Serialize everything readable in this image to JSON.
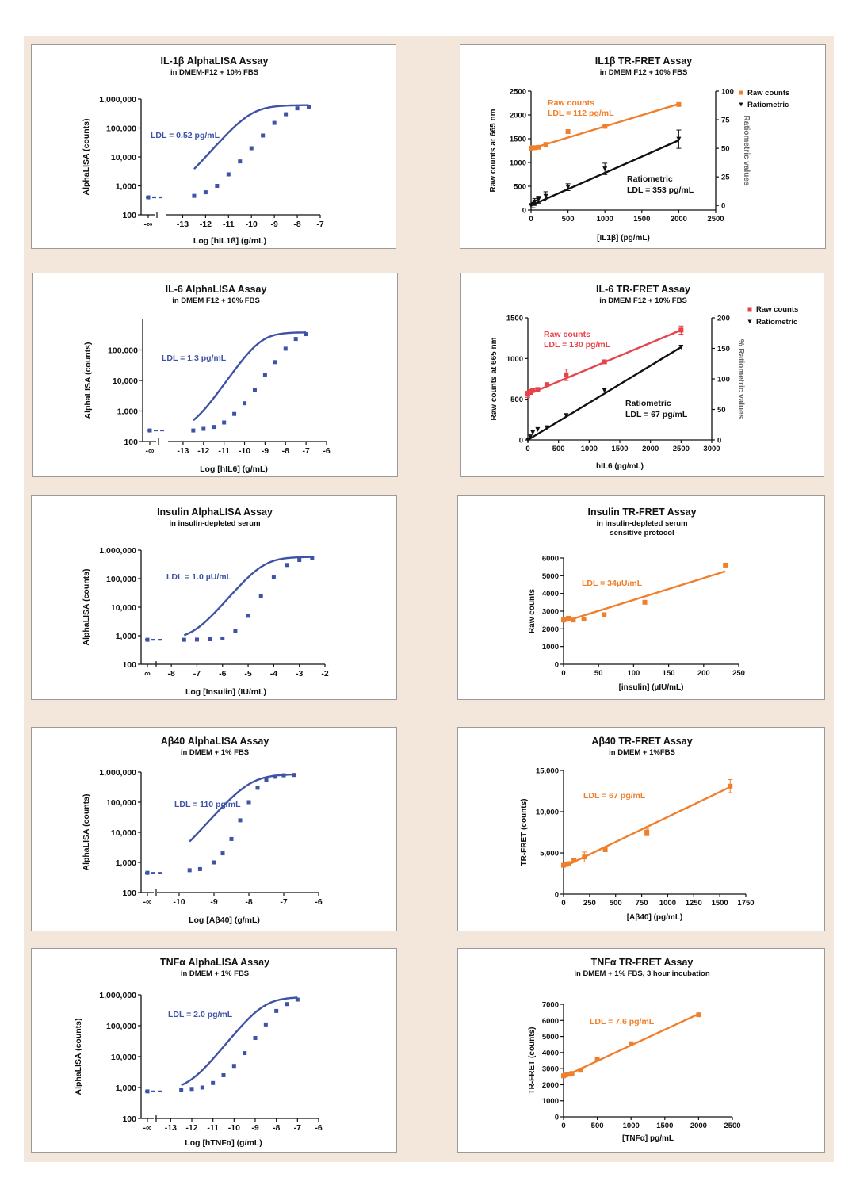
{
  "colors": {
    "alpha": "#3e53a6",
    "orange": "#f07f2c",
    "red": "#e8434b",
    "black": "#111111",
    "grey": "#666666",
    "bg": "#f3e6da"
  },
  "chart_data": [
    {
      "id": "c1",
      "type": "line",
      "kind": "sigmoid",
      "title": "IL-1β AlphaLISA Assay",
      "subtitle": "in DMEM-F12 + 10% FBS",
      "xlabel": "Log [hIL1ß] (g/mL)",
      "ylabel": "AlphaLISA (counts)",
      "ylog": true,
      "ylim": [
        100,
        1000000
      ],
      "yticks": [
        100,
        1000,
        10000,
        100000,
        1000000
      ],
      "yticklabels": [
        "100",
        "1,000",
        "10,000",
        "100,000",
        "1,000,000"
      ],
      "xlim": [
        -13.5,
        -7
      ],
      "xticks": [
        -13,
        -12,
        -11,
        -10,
        -9,
        -8,
        -7
      ],
      "xticklabels": [
        "-13",
        "-12",
        "-11",
        "-10",
        "-9",
        "-8",
        "-7"
      ],
      "zero_label": "-∞",
      "annotations": [
        {
          "text": "LDL = 0.52 pg/mL",
          "color": "alpha"
        }
      ],
      "points_x": [
        -12.5,
        -12,
        -11.5,
        -11,
        -10.5,
        -10,
        -9.5,
        -9,
        -8.5,
        -8,
        -7.5
      ],
      "points_y": [
        450,
        600,
        1000,
        2500,
        7000,
        20000,
        55000,
        150000,
        300000,
        480000,
        550000
      ],
      "baseline_y": 400,
      "fit": {
        "bottom": 380,
        "top": 620000,
        "logec50": -10,
        "hill": 0.9
      }
    },
    {
      "id": "c2",
      "type": "line",
      "kind": "linear2",
      "title": "IL1β TR-FRET Assay",
      "subtitle": "in DMEM F12 + 10% FBS",
      "xlabel": "[IL1β] (pg/mL)",
      "ylabel": "Raw counts at 665 nm",
      "y2label": "Ratiometric  values",
      "xlim": [
        0,
        2500
      ],
      "xticks": [
        0,
        500,
        1000,
        1500,
        2000,
        2500
      ],
      "xticklabels": [
        "0",
        "500",
        "1000",
        "1500",
        "2000",
        "2500"
      ],
      "ylim": [
        0,
        2500
      ],
      "yticks": [
        0,
        500,
        1000,
        1500,
        2000,
        2500
      ],
      "yticklabels": [
        "0",
        "500",
        "1000",
        "1500",
        "2000",
        "2500"
      ],
      "y2lim": [
        -4,
        100
      ],
      "y2ticks": [
        0,
        25,
        50,
        75,
        100
      ],
      "y2ticklabels": [
        "0",
        "25",
        "50",
        "75",
        "100"
      ],
      "series": [
        {
          "name": "Raw counts",
          "color": "orange",
          "marker": "square",
          "axis": "y",
          "x": [
            0,
            25,
            50,
            100,
            200,
            500,
            1000,
            2000
          ],
          "y": [
            1300,
            1310,
            1310,
            1320,
            1380,
            1650,
            1760,
            2220
          ],
          "fit": [
            [
              0,
              1290
            ],
            [
              2000,
              2230
            ]
          ]
        },
        {
          "name": "Ratiometric",
          "color": "black",
          "marker": "triangle",
          "axis": "y2",
          "x": [
            0,
            25,
            50,
            100,
            200,
            500,
            1000,
            2000
          ],
          "y": [
            0,
            1,
            3,
            5,
            8,
            16,
            32,
            58
          ],
          "err": [
            4,
            3,
            3,
            3,
            4,
            3,
            5,
            8
          ],
          "fit": [
            [
              0,
              0
            ],
            [
              2000,
              57
            ]
          ]
        }
      ],
      "annotations": [
        {
          "text": "Raw counts",
          "color": "orange"
        },
        {
          "text": "LDL = 112 pg/mL",
          "color": "orange"
        },
        {
          "text": "Ratiometric",
          "color": "black"
        },
        {
          "text": "LDL = 353 pg/mL",
          "color": "black"
        }
      ],
      "legend": "top-right"
    },
    {
      "id": "c3",
      "type": "line",
      "kind": "sigmoid",
      "title": "IL-6 AlphaLISA Assay",
      "subtitle": "in DMEM F12 + 10% FBS",
      "xlabel": "Log [hIL6] (g/mL)",
      "ylabel": "AlphaLISA (counts)",
      "ylog": true,
      "ylim": [
        100,
        1000000
      ],
      "yticks": [
        100,
        1000,
        10000,
        100000
      ],
      "yticklabels": [
        "100",
        "1,000",
        "10,000",
        "100,000"
      ],
      "xlim": [
        -13.5,
        -6
      ],
      "xticks": [
        -13,
        -12,
        -11,
        -10,
        -9,
        -8,
        -7,
        -6
      ],
      "xticklabels": [
        "-13",
        "-12",
        "-11",
        "-10",
        "-9",
        "-8",
        "-7",
        "-6"
      ],
      "zero_label": "-∞",
      "annotations": [
        {
          "text": "LDL = 1.3 pg/mL",
          "color": "alpha"
        }
      ],
      "points_x": [
        -12.5,
        -12,
        -11.5,
        -11,
        -10.5,
        -10,
        -9.5,
        -9,
        -8.5,
        -8,
        -7.5,
        -7
      ],
      "points_y": [
        230,
        260,
        300,
        420,
        800,
        1800,
        5000,
        15000,
        40000,
        110000,
        230000,
        330000
      ],
      "baseline_y": 230,
      "fit": {
        "bottom": 220,
        "top": 380000,
        "logec50": -9.2,
        "hill": 0.95
      }
    },
    {
      "id": "c4",
      "type": "line",
      "kind": "linear2",
      "title": "IL-6 TR-FRET Assay",
      "subtitle": "in DMEM F12 + 10% FBS",
      "xlabel": "hIL6 (pg/mL)",
      "ylabel": "Raw counts at 665 nm",
      "y2label": "% Ratiometric  values",
      "xlim": [
        0,
        3000
      ],
      "xticks": [
        0,
        500,
        1000,
        1500,
        2000,
        2500,
        3000
      ],
      "xticklabels": [
        "0",
        "500",
        "1000",
        "1500",
        "2000",
        "2500",
        "3000"
      ],
      "ylim": [
        0,
        1500
      ],
      "yticks": [
        0,
        500,
        1000,
        1500
      ],
      "yticklabels": [
        "0",
        "500",
        "1000",
        "1500"
      ],
      "y2lim": [
        0,
        200
      ],
      "y2ticks": [
        0,
        50,
        100,
        150,
        200
      ],
      "y2ticklabels": [
        "0",
        "50",
        "100",
        "150",
        "200"
      ],
      "series": [
        {
          "name": "Raw counts",
          "color": "red",
          "marker": "square",
          "axis": "y",
          "x": [
            0,
            40,
            80,
            160,
            310,
            625,
            1250,
            2500
          ],
          "y": [
            560,
            590,
            610,
            620,
            680,
            800,
            960,
            1350
          ],
          "err": [
            40,
            30,
            20,
            20,
            20,
            70,
            15,
            50
          ],
          "fit": [
            [
              0,
              560
            ],
            [
              2500,
              1350
            ]
          ]
        },
        {
          "name": "Ratiometric",
          "color": "black",
          "marker": "triangle",
          "axis": "y2",
          "x": [
            0,
            40,
            80,
            160,
            310,
            625,
            1250,
            2500
          ],
          "y": [
            0,
            5,
            12,
            17,
            20,
            40,
            81,
            152
          ],
          "fit": [
            [
              0,
              0
            ],
            [
              2500,
              152
            ]
          ]
        }
      ],
      "annotations": [
        {
          "text": "Raw counts",
          "color": "red"
        },
        {
          "text": "LDL = 130 pg/mL",
          "color": "red"
        },
        {
          "text": "Ratiometric",
          "color": "black"
        },
        {
          "text": "LDL = 67 pg/mL",
          "color": "black"
        }
      ],
      "legend": "top-right",
      "legend_labels": [
        "Raw counts",
        "Ratiometric"
      ]
    },
    {
      "id": "c5",
      "type": "line",
      "kind": "sigmoid",
      "title": "Insulin AlphaLISA Assay",
      "subtitle": "in insulin-depleted serum",
      "xlabel": "Log [Insulin] (IU/mL)",
      "ylabel": "AlphaLISA  (counts)",
      "ylog": true,
      "ylim": [
        100,
        1000000
      ],
      "yticks": [
        100,
        1000,
        10000,
        100000,
        1000000
      ],
      "yticklabels": [
        "100",
        "1,000",
        "10,000",
        "100,000",
        "1,000,000"
      ],
      "xlim": [
        -8.5,
        -2
      ],
      "xticks": [
        -8,
        -7,
        -6,
        -5,
        -4,
        -3,
        -2
      ],
      "xticklabels": [
        "-8",
        "-7",
        "-6",
        "-5",
        "-4",
        "-3",
        "-2"
      ],
      "zero_label": "∞",
      "annotations": [
        {
          "text": "LDL = 1.0 µU/mL",
          "color": "alpha"
        }
      ],
      "points_x": [
        -7.5,
        -7,
        -6.5,
        -6,
        -5.5,
        -5,
        -4.5,
        -4,
        -3.5,
        -3,
        -2.5
      ],
      "points_y": [
        720,
        730,
        750,
        800,
        1500,
        5000,
        25000,
        110000,
        300000,
        450000,
        520000
      ],
      "baseline_y": 720,
      "fit": {
        "bottom": 720,
        "top": 580000,
        "logec50": -4.4,
        "hill": 1.05
      }
    },
    {
      "id": "c6",
      "type": "scatter",
      "kind": "linear",
      "title": "Insulin TR-FRET Assay",
      "subtitle": "in insulin-depleted serum",
      "subtitle2": "sensitive protocol",
      "xlabel": "[insulin] (µIU/mL)",
      "ylabel": "Raw  counts",
      "xlim": [
        0,
        250
      ],
      "xticks": [
        0,
        50,
        100,
        150,
        200,
        250
      ],
      "xticklabels": [
        "0",
        "50",
        "100",
        "150",
        "200",
        "250"
      ],
      "ylim": [
        0,
        6000
      ],
      "yticks": [
        0,
        1000,
        2000,
        3000,
        4000,
        5000,
        6000
      ],
      "yticklabels": [
        "0",
        "1000",
        "2000",
        "3000",
        "4000",
        "5000",
        "6000"
      ],
      "series": [
        {
          "name": "",
          "color": "orange",
          "marker": "square",
          "x": [
            0,
            3.5,
            7,
            14,
            29,
            58,
            116,
            231
          ],
          "y": [
            2500,
            2550,
            2600,
            2500,
            2550,
            2800,
            3500,
            5600
          ],
          "fit": [
            [
              0,
              2400
            ],
            [
              231,
              5250
            ]
          ]
        }
      ],
      "annotations": [
        {
          "text": "LDL = 34µU/mL",
          "color": "orange"
        }
      ]
    },
    {
      "id": "c7",
      "type": "line",
      "kind": "sigmoid",
      "title": "Aβ40 AlphaLISA Assay",
      "subtitle": "in DMEM + 1% FBS",
      "xlabel": "Log [Aβ40] (g/mL)",
      "ylabel": "AlphaLISA (counts)",
      "ylog": true,
      "ylim": [
        100,
        1000000
      ],
      "yticks": [
        100,
        1000,
        10000,
        100000,
        1000000
      ],
      "yticklabels": [
        "100",
        "1,000",
        "10,000",
        "100,000",
        "1,000,000"
      ],
      "xlim": [
        -10.5,
        -6
      ],
      "xticks": [
        -10,
        -9,
        -8,
        -7,
        -6
      ],
      "xticklabels": [
        "-10",
        "-9",
        "-8",
        "-7",
        "-6"
      ],
      "zero_label": "-∞",
      "annotations": [
        {
          "text": "LDL = 110 pg/mL",
          "color": "alpha"
        }
      ],
      "points_x": [
        -9.7,
        -9.4,
        -9,
        -8.75,
        -8.5,
        -8.25,
        -8,
        -7.75,
        -7.5,
        -7.25,
        -7,
        -6.7
      ],
      "points_y": [
        550,
        600,
        1000,
        2000,
        6000,
        25000,
        100000,
        300000,
        550000,
        700000,
        780000,
        800000
      ],
      "baseline_y": 450,
      "fit": {
        "bottom": 450,
        "top": 850000,
        "logec50": -7.95,
        "hill": 1.3
      }
    },
    {
      "id": "c8",
      "type": "scatter",
      "kind": "linear",
      "title": "Aβ40 TR-FRET Assay",
      "subtitle": "in DMEM + 1%FBS",
      "xlabel": "[Aβ40] (pg/mL)",
      "ylabel": "TR-FRET (counts)",
      "xlim": [
        0,
        1750
      ],
      "xticks": [
        0,
        250,
        500,
        750,
        1000,
        1250,
        1500,
        1750
      ],
      "xticklabels": [
        "0",
        "250",
        "500",
        "750",
        "1000",
        "1250",
        "1500",
        "1750"
      ],
      "ylim": [
        0,
        15000
      ],
      "yticks": [
        0,
        5000,
        10000,
        15000
      ],
      "yticklabels": [
        "0",
        "5,000",
        "10,000",
        "15,000"
      ],
      "series": [
        {
          "name": "",
          "color": "orange",
          "marker": "square",
          "x": [
            0,
            25,
            50,
            100,
            200,
            400,
            800,
            1600
          ],
          "y": [
            3500,
            3600,
            3700,
            4100,
            4500,
            5400,
            7500,
            13100
          ],
          "err": [
            200,
            150,
            150,
            200,
            600,
            250,
            400,
            800
          ],
          "fit": [
            [
              0,
              3300
            ],
            [
              1600,
              13000
            ]
          ]
        }
      ],
      "annotations": [
        {
          "text": "LDL = 67 pg/mL",
          "color": "orange"
        }
      ]
    },
    {
      "id": "c9",
      "type": "line",
      "kind": "sigmoid",
      "title": "TNFα AlphaLISA Assay",
      "subtitle": "in DMEM + 1% FBS",
      "xlabel": "Log [hTNFα] (g/mL)",
      "ylabel": "AlphaLISA (counts)",
      "ylog": true,
      "ylim": [
        100,
        1000000
      ],
      "yticks": [
        100,
        1000,
        10000,
        100000,
        1000000
      ],
      "yticklabels": [
        "100",
        "1,000",
        "10,000",
        "100,000",
        "1,000,000"
      ],
      "xlim": [
        -13.5,
        -6
      ],
      "xticks": [
        -13,
        -12,
        -11,
        -10,
        -9,
        -8,
        -7,
        -6
      ],
      "xticklabels": [
        "-13",
        "-12",
        "-11",
        "-10",
        "-9",
        "-8",
        "-7",
        "-6"
      ],
      "zero_label": "-∞",
      "annotations": [
        {
          "text": "LDL = 2.0 pg/mL",
          "color": "alpha"
        }
      ],
      "points_x": [
        -12.5,
        -12,
        -11.5,
        -11,
        -10.5,
        -10,
        -9.5,
        -9,
        -8.5,
        -8,
        -7.5,
        -7
      ],
      "points_y": [
        850,
        900,
        1000,
        1400,
        2500,
        5000,
        13000,
        40000,
        110000,
        300000,
        500000,
        700000
      ],
      "baseline_y": 750,
      "fit": {
        "bottom": 780,
        "top": 850000,
        "logec50": -8.6,
        "hill": 0.85
      }
    },
    {
      "id": "c10",
      "type": "scatter",
      "kind": "linear",
      "title": "TNFα TR-FRET Assay",
      "subtitle": "in DMEM + 1% FBS, 3 hour incubation",
      "xlabel": "[TNFα] pg/mL",
      "ylabel": "TR-FRET  (counts)",
      "xlim": [
        0,
        2500
      ],
      "xticks": [
        0,
        500,
        1000,
        1500,
        2000,
        2500
      ],
      "xticklabels": [
        "0",
        "500",
        "1000",
        "1500",
        "2000",
        "2500"
      ],
      "ylim": [
        0,
        7000
      ],
      "yticks": [
        0,
        1000,
        2000,
        3000,
        4000,
        5000,
        6000,
        7000
      ],
      "yticklabels": [
        "0",
        "1000",
        "2000",
        "3000",
        "4000",
        "5000",
        "6000",
        "7000"
      ],
      "series": [
        {
          "name": "",
          "color": "orange",
          "marker": "square",
          "x": [
            0,
            31,
            62,
            125,
            250,
            500,
            1000,
            2000
          ],
          "y": [
            2550,
            2600,
            2650,
            2700,
            2900,
            3600,
            4550,
            6350
          ],
          "fit": [
            [
              0,
              2500
            ],
            [
              2000,
              6400
            ]
          ]
        }
      ],
      "annotations": [
        {
          "text": "LDL = 7.6 pg/mL",
          "color": "orange"
        }
      ]
    }
  ]
}
